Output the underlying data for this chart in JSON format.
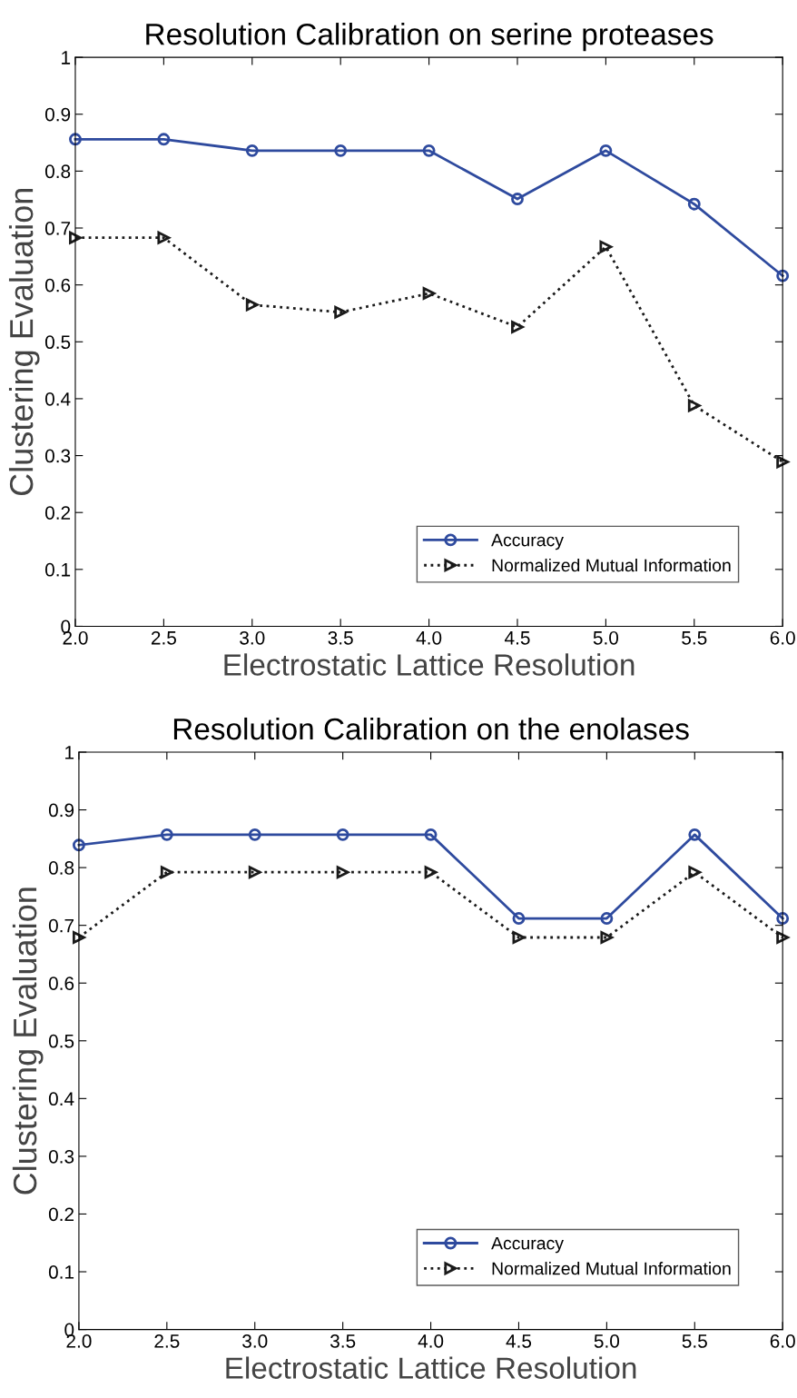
{
  "chart_data": [
    {
      "type": "line",
      "title": "Resolution Calibration on serine proteases",
      "xlabel": "Electrostatic Lattice Resolution",
      "ylabel": "Clustering Evaluation",
      "x": [
        2.0,
        2.5,
        3.0,
        3.5,
        4.0,
        4.5,
        5.0,
        5.5,
        6.0
      ],
      "series": [
        {
          "name": "Accuracy",
          "color": "#2e4a9e",
          "marker": "circle",
          "line_style": "solid",
          "values": [
            0.856,
            0.856,
            0.836,
            0.836,
            0.836,
            0.751,
            0.836,
            0.742,
            0.616
          ]
        },
        {
          "name": "Normalized Mutual Information",
          "color": "#1a1a1a",
          "marker": "triangle",
          "line_style": "dotted",
          "values": [
            0.683,
            0.683,
            0.565,
            0.552,
            0.585,
            0.526,
            0.667,
            0.388,
            0.289
          ]
        }
      ],
      "xlim": [
        2.0,
        6.0
      ],
      "xticks": [
        {
          "value": 2.0,
          "label": "2.0"
        },
        {
          "value": 2.5,
          "label": "2.5"
        },
        {
          "value": 3.0,
          "label": "3.0"
        },
        {
          "value": 3.5,
          "label": "3.5"
        },
        {
          "value": 4.0,
          "label": "4.0"
        },
        {
          "value": 4.5,
          "label": "4.5"
        },
        {
          "value": 5.0,
          "label": "5.0"
        },
        {
          "value": 5.5,
          "label": "5.5"
        },
        {
          "value": 6.0,
          "label": "6.0"
        }
      ],
      "ylim": [
        0,
        1
      ],
      "yticks": [
        0,
        0.1,
        0.2,
        0.3,
        0.4,
        0.5,
        0.6,
        0.7,
        0.8,
        0.9,
        1
      ],
      "grid": false,
      "legend": "bottom right"
    },
    {
      "type": "line",
      "title": "Resolution Calibration on the enolases",
      "xlabel": "Electrostatic Lattice Resolution",
      "ylabel": "Clustering Evaluation",
      "x": [
        2.0,
        2.5,
        3.0,
        3.5,
        4.0,
        4.5,
        5.0,
        5.5,
        6.0
      ],
      "series": [
        {
          "name": "Accuracy",
          "color": "#2e4a9e",
          "marker": "circle",
          "line_style": "solid",
          "values": [
            0.839,
            0.857,
            0.857,
            0.857,
            0.857,
            0.712,
            0.712,
            0.857,
            0.712
          ]
        },
        {
          "name": "Normalized Mutual Information",
          "color": "#1a1a1a",
          "marker": "triangle",
          "line_style": "dotted",
          "values": [
            0.679,
            0.792,
            0.792,
            0.792,
            0.792,
            0.679,
            0.679,
            0.792,
            0.679
          ]
        }
      ],
      "xlim": [
        2.0,
        6.0
      ],
      "xticks": [
        {
          "value": 2.0,
          "label": "2.0"
        },
        {
          "value": 2.5,
          "label": "2.5"
        },
        {
          "value": 3.0,
          "label": "3.0"
        },
        {
          "value": 3.5,
          "label": "3.5"
        },
        {
          "value": 4.0,
          "label": "4.0"
        },
        {
          "value": 4.5,
          "label": "4.5"
        },
        {
          "value": 5.0,
          "label": "5.0"
        },
        {
          "value": 5.5,
          "label": "5.5"
        },
        {
          "value": 6.0,
          "label": "6.0"
        }
      ],
      "ylim": [
        0,
        1
      ],
      "yticks": [
        0,
        0.1,
        0.2,
        0.3,
        0.4,
        0.5,
        0.6,
        0.7,
        0.8,
        0.9,
        1
      ],
      "grid": false,
      "legend": "bottom right"
    }
  ]
}
